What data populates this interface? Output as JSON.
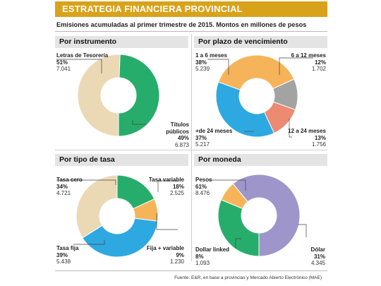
{
  "header": {
    "title": "ESTRATEGIA FINANCIERA PROVINCIAL",
    "subtitle": "Emisiones acumuladas al primer trimestre de 2015. Montos en millones de pesos"
  },
  "source": "Fuente: E&R, en base a provincias y Mercado Abierto Electrónico (MAE)",
  "chart_data": [
    {
      "type": "pie",
      "title": "Por instrumento",
      "slices": [
        {
          "name": "Letras de Tesorería",
          "pct_label": "51%",
          "value_label": "7.041",
          "value": 7041,
          "color": "#ead9b4"
        },
        {
          "name": "Títulos públicos",
          "pct_label": "49%",
          "value_label": "6.873",
          "value": 6873,
          "color": "#27ad6b"
        }
      ]
    },
    {
      "type": "pie",
      "title": "Por plazo de vencimiento",
      "slices": [
        {
          "name": "1 a 6 meses",
          "pct_label": "38%",
          "value_label": "5.239",
          "value": 5239,
          "color": "#f6b45a"
        },
        {
          "name": "6 a 12 meses",
          "pct_label": "12%",
          "value_label": "1.702",
          "value": 1702,
          "color": "#a3a3a3"
        },
        {
          "name": "12 a 24 meses",
          "pct_label": "13%",
          "value_label": "1.756",
          "value": 1756,
          "color": "#ec8a72"
        },
        {
          "name": "+de 24 meses",
          "pct_label": "37%",
          "value_label": "5.217",
          "value": 5217,
          "color": "#2ea8e0"
        }
      ]
    },
    {
      "type": "pie",
      "title": "Por tipo de tasa",
      "slices": [
        {
          "name": "Tasa variable",
          "pct_label": "18%",
          "value_label": "2.525",
          "value": 2525,
          "color": "#27ad6b"
        },
        {
          "name": "Fija + variable",
          "pct_label": "9%",
          "value_label": "1.230",
          "value": 1230,
          "color": "#f6b45a"
        },
        {
          "name": "Tasa fija",
          "pct_label": "39%",
          "value_label": "5.438",
          "value": 5438,
          "color": "#2ea8e0"
        },
        {
          "name": "Tasa cero",
          "pct_label": "34%",
          "value_label": "4.721",
          "value": 4721,
          "color": "#ead9b4"
        }
      ]
    },
    {
      "type": "pie",
      "title": "Por moneda",
      "slices": [
        {
          "name": "Dólar",
          "pct_label": "31%",
          "value_label": "4.345",
          "value": 4345,
          "color": "#27ad6b"
        },
        {
          "name": "Dollar linked",
          "pct_label": "8%",
          "value_label": "1.093",
          "value": 1093,
          "color": "#f6b45a"
        },
        {
          "name": "Pesos",
          "pct_label": "61%",
          "value_label": "8.476",
          "value": 8476,
          "color": "#9e95cb"
        }
      ]
    }
  ]
}
